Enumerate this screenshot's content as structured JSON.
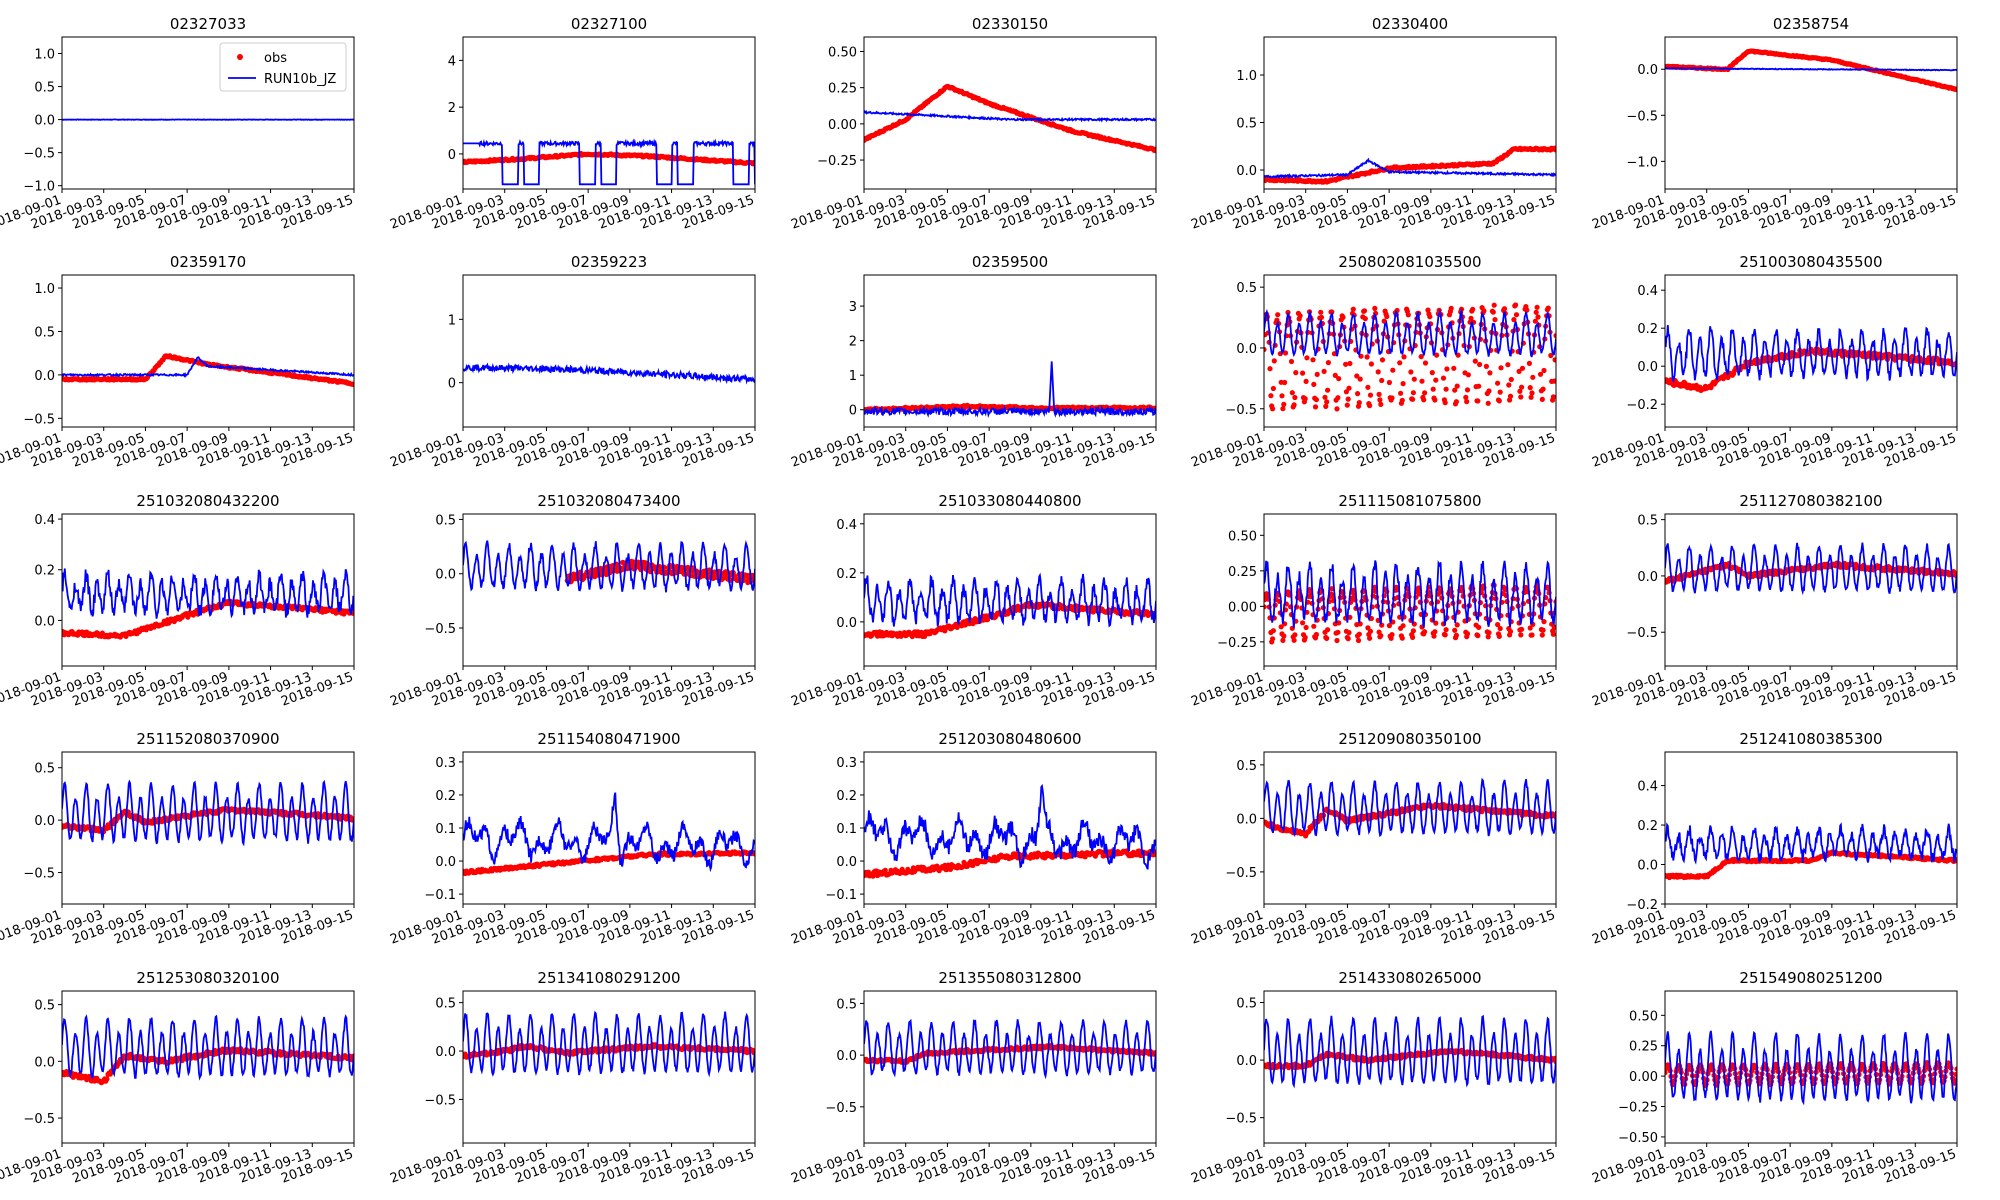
{
  "figure": {
    "colors": {
      "obs": "#ff0000",
      "model": "#0000ff"
    },
    "legend": {
      "obs_label": "obs",
      "model_label": "RUN10b_JZ",
      "placement": "upper-right of first panel"
    },
    "date_ticks": [
      "2018-09-01",
      "2018-09-03",
      "2018-09-05",
      "2018-09-07",
      "2018-09-09",
      "2018-09-11",
      "2018-09-13",
      "2018-09-15"
    ],
    "x_range": [
      "2018-09-01",
      "2018-09-15"
    ]
  },
  "chart_data": [
    {
      "type": "line",
      "title": "02327033",
      "yticks": [
        "−1.0",
        "−0.5",
        "0.0",
        "0.5",
        "1.0"
      ],
      "ylim": [
        -1.05,
        1.25
      ],
      "obs": {
        "present": false
      },
      "model": {
        "base": 0.0,
        "amp": 0.0,
        "noise": 0.003,
        "kind": "flat"
      }
    },
    {
      "type": "line",
      "title": "02327100",
      "yticks": [
        "0",
        "2",
        "4"
      ],
      "ylim": [
        -1.5,
        5.0
      ],
      "obs": {
        "present": true,
        "points": [
          [
            "2018-09-01",
            -0.35
          ],
          [
            "2018-09-04",
            -0.2
          ],
          [
            "2018-09-07",
            0.0
          ],
          [
            "2018-09-10",
            -0.1
          ],
          [
            "2018-09-15",
            -0.4
          ]
        ],
        "noise": 0.04
      },
      "model": {
        "kind": "switch",
        "high": 0.45,
        "low": -1.3
      }
    },
    {
      "type": "line",
      "title": "02330150",
      "yticks": [
        "−0.25",
        "0.00",
        "0.25",
        "0.50"
      ],
      "ylim": [
        -0.45,
        0.6
      ],
      "obs": {
        "present": true,
        "points": [
          [
            "2018-09-01",
            -0.11
          ],
          [
            "2018-09-03",
            0.03
          ],
          [
            "2018-09-05",
            0.26
          ],
          [
            "2018-09-07",
            0.14
          ],
          [
            "2018-09-11",
            -0.05
          ],
          [
            "2018-09-15",
            -0.18
          ]
        ],
        "noise": 0.006
      },
      "model": {
        "kind": "trend",
        "points": [
          [
            "2018-09-01",
            0.08
          ],
          [
            "2018-09-04",
            0.06
          ],
          [
            "2018-09-08",
            0.03
          ],
          [
            "2018-09-15",
            0.03
          ]
        ],
        "noise": 0.006
      }
    },
    {
      "type": "line",
      "title": "02330400",
      "yticks": [
        "0.0",
        "0.5",
        "1.0"
      ],
      "ylim": [
        -0.2,
        1.4
      ],
      "obs": {
        "present": true,
        "points": [
          [
            "2018-09-01",
            -0.1
          ],
          [
            "2018-09-04",
            -0.12
          ],
          [
            "2018-09-07",
            0.02
          ],
          [
            "2018-09-12",
            0.07
          ],
          [
            "2018-09-13",
            0.22
          ],
          [
            "2018-09-15",
            0.22
          ]
        ],
        "noise": 0.01
      },
      "model": {
        "kind": "trend",
        "points": [
          [
            "2018-09-01",
            -0.07
          ],
          [
            "2018-09-05",
            -0.05
          ],
          [
            "2018-09-06",
            0.1
          ],
          [
            "2018-09-07",
            -0.02
          ],
          [
            "2018-09-15",
            -0.05
          ]
        ],
        "noise": 0.01
      }
    },
    {
      "type": "line",
      "title": "02358754",
      "yticks": [
        "−1.0",
        "−0.5",
        "0.0"
      ],
      "ylim": [
        -1.3,
        0.35
      ],
      "obs": {
        "present": true,
        "points": [
          [
            "2018-09-01",
            0.03
          ],
          [
            "2018-09-04",
            0.0
          ],
          [
            "2018-09-05",
            0.2
          ],
          [
            "2018-09-09",
            0.1
          ],
          [
            "2018-09-15",
            -0.22
          ]
        ],
        "noise": 0.006
      },
      "model": {
        "kind": "trend",
        "points": [
          [
            "2018-09-01",
            0.01
          ],
          [
            "2018-09-15",
            -0.01
          ]
        ],
        "noise": 0.004
      }
    },
    {
      "type": "line",
      "title": "02359170",
      "yticks": [
        "−0.5",
        "0.0",
        "0.5",
        "1.0"
      ],
      "ylim": [
        -0.6,
        1.15
      ],
      "obs": {
        "present": true,
        "points": [
          [
            "2018-09-01",
            -0.05
          ],
          [
            "2018-09-05",
            -0.05
          ],
          [
            "2018-09-06",
            0.22
          ],
          [
            "2018-09-08",
            0.12
          ],
          [
            "2018-09-15",
            -0.1
          ]
        ],
        "noise": 0.01
      },
      "model": {
        "kind": "trend",
        "points": [
          [
            "2018-09-01",
            0.0
          ],
          [
            "2018-09-07",
            0.0
          ],
          [
            "2018-09-07.5",
            0.2
          ],
          [
            "2018-09-08",
            0.1
          ],
          [
            "2018-09-15",
            0.0
          ]
        ],
        "noise": 0.01
      }
    },
    {
      "type": "line",
      "title": "02359223",
      "yticks": [
        "0",
        "1"
      ],
      "ylim": [
        -0.7,
        1.7
      ],
      "obs": {
        "present": false
      },
      "model": {
        "kind": "trend",
        "points": [
          [
            "2018-09-01",
            0.24
          ],
          [
            "2018-09-05",
            0.22
          ],
          [
            "2018-09-08",
            0.18
          ],
          [
            "2018-09-15",
            0.05
          ]
        ],
        "noise": 0.05
      }
    },
    {
      "type": "line",
      "title": "02359500",
      "yticks": [
        "0",
        "1",
        "2",
        "3"
      ],
      "ylim": [
        -0.5,
        3.9
      ],
      "obs": {
        "present": true,
        "points": [
          [
            "2018-09-01",
            0.0
          ],
          [
            "2018-09-06",
            0.1
          ],
          [
            "2018-09-09",
            0.05
          ],
          [
            "2018-09-15",
            0.05
          ]
        ],
        "noise": 0.03
      },
      "model": {
        "kind": "spike",
        "base": -0.05,
        "noise": 0.1,
        "spike_day": 9.0,
        "spike": 1.45
      }
    },
    {
      "type": "line",
      "title": "250802081035500",
      "yticks": [
        "−0.5",
        "0.0",
        "0.5"
      ],
      "ylim": [
        -0.65,
        0.6
      ],
      "obs": {
        "present": true,
        "tidal": true,
        "base": 0.0,
        "amp": 0.38,
        "trend": 0.08
      },
      "model": {
        "kind": "tidal",
        "base": 0.1,
        "amp": 0.17,
        "noise": 0.02
      }
    },
    {
      "type": "line",
      "title": "251003080435500",
      "yticks": [
        "−0.2",
        "0.0",
        "0.2",
        "0.4"
      ],
      "ylim": [
        -0.32,
        0.48
      ],
      "obs": {
        "present": true,
        "points": [
          [
            "2018-09-01",
            -0.08
          ],
          [
            "2018-09-03",
            -0.12
          ],
          [
            "2018-09-05",
            0.02
          ],
          [
            "2018-09-08",
            0.08
          ],
          [
            "2018-09-15",
            0.02
          ]
        ],
        "noise": 0.015
      },
      "model": {
        "kind": "tidal",
        "base": 0.06,
        "amp": 0.12,
        "noise": 0.03
      }
    },
    {
      "type": "line",
      "title": "251032080432200",
      "yticks": [
        "0.0",
        "0.2",
        "0.4"
      ],
      "ylim": [
        -0.18,
        0.42
      ],
      "obs": {
        "present": true,
        "points": [
          [
            "2018-09-01",
            -0.05
          ],
          [
            "2018-09-04",
            -0.06
          ],
          [
            "2018-09-07",
            0.02
          ],
          [
            "2018-09-09",
            0.07
          ],
          [
            "2018-09-15",
            0.03
          ]
        ],
        "noise": 0.008
      },
      "model": {
        "kind": "tidal",
        "base": 0.1,
        "amp": 0.07,
        "noise": 0.03
      }
    },
    {
      "type": "line",
      "title": "251032080473400",
      "yticks": [
        "−0.5",
        "0.0",
        "0.5"
      ],
      "ylim": [
        -0.85,
        0.55
      ],
      "obs": {
        "present": true,
        "start": "2018-09-06",
        "points": [
          [
            "2018-09-06",
            -0.05
          ],
          [
            "2018-09-09",
            0.08
          ],
          [
            "2018-09-15",
            -0.05
          ]
        ],
        "noise": 0.04
      },
      "model": {
        "kind": "tidal",
        "base": 0.05,
        "amp": 0.2,
        "noise": 0.04
      }
    },
    {
      "type": "line",
      "title": "251033080440800",
      "yticks": [
        "0.0",
        "0.2",
        "0.4"
      ],
      "ylim": [
        -0.18,
        0.44
      ],
      "obs": {
        "present": true,
        "points": [
          [
            "2018-09-01",
            -0.05
          ],
          [
            "2018-09-04",
            -0.05
          ],
          [
            "2018-09-07",
            0.02
          ],
          [
            "2018-09-09",
            0.07
          ],
          [
            "2018-09-15",
            0.03
          ]
        ],
        "noise": 0.01
      },
      "model": {
        "kind": "tidal",
        "base": 0.08,
        "amp": 0.08,
        "noise": 0.03
      }
    },
    {
      "type": "line",
      "title": "251115081075800",
      "yticks": [
        "−0.25",
        "0.00",
        "0.25",
        "0.50"
      ],
      "ylim": [
        -0.42,
        0.65
      ],
      "obs": {
        "present": true,
        "tidal": true,
        "base": -0.02,
        "amp": 0.17,
        "trend": 0.05
      },
      "model": {
        "kind": "tidal",
        "base": 0.08,
        "amp": 0.2,
        "noise": 0.05
      }
    },
    {
      "type": "line",
      "title": "251127080382100",
      "yticks": [
        "−0.5",
        "0.0",
        "0.5"
      ],
      "ylim": [
        -0.8,
        0.55
      ],
      "obs": {
        "present": true,
        "points": [
          [
            "2018-09-01",
            -0.05
          ],
          [
            "2018-09-04",
            0.1
          ],
          [
            "2018-09-05",
            0.0
          ],
          [
            "2018-09-09",
            0.1
          ],
          [
            "2018-09-15",
            0.02
          ]
        ],
        "noise": 0.02
      },
      "model": {
        "kind": "tidal",
        "base": 0.05,
        "amp": 0.2,
        "noise": 0.03
      }
    },
    {
      "type": "line",
      "title": "251152080370900",
      "yticks": [
        "−0.5",
        "0.0",
        "0.5"
      ],
      "ylim": [
        -0.8,
        0.65
      ],
      "obs": {
        "present": true,
        "points": [
          [
            "2018-09-01",
            -0.05
          ],
          [
            "2018-09-03",
            -0.1
          ],
          [
            "2018-09-04",
            0.08
          ],
          [
            "2018-09-05",
            -0.02
          ],
          [
            "2018-09-09",
            0.1
          ],
          [
            "2018-09-15",
            0.02
          ]
        ],
        "noise": 0.02
      },
      "model": {
        "kind": "tidal",
        "base": 0.05,
        "amp": 0.27,
        "noise": 0.03
      }
    },
    {
      "type": "line",
      "title": "251154080471900",
      "yticks": [
        "−0.1",
        "0.0",
        "0.1",
        "0.2",
        "0.3"
      ],
      "ylim": [
        -0.13,
        0.33
      ],
      "obs": {
        "present": true,
        "points": [
          [
            "2018-09-01",
            -0.035
          ],
          [
            "2018-09-05",
            -0.01
          ],
          [
            "2018-09-10",
            0.02
          ],
          [
            "2018-09-15",
            0.025
          ]
        ],
        "noise": 0.004
      },
      "model": {
        "kind": "bumpy",
        "base": 0.07,
        "noise": 0.02,
        "spike_day": 7.3,
        "spike": 0.22
      }
    },
    {
      "type": "line",
      "title": "251203080480600",
      "yticks": [
        "−0.1",
        "0.0",
        "0.1",
        "0.2",
        "0.3"
      ],
      "ylim": [
        -0.13,
        0.33
      ],
      "obs": {
        "present": true,
        "points": [
          [
            "2018-09-01",
            -0.04
          ],
          [
            "2018-09-05",
            -0.02
          ],
          [
            "2018-09-08",
            0.015
          ],
          [
            "2018-09-15",
            0.025
          ]
        ],
        "noise": 0.008
      },
      "model": {
        "kind": "bumpy",
        "base": 0.08,
        "noise": 0.025,
        "spike_day": 8.5,
        "spike": 0.23
      }
    },
    {
      "type": "line",
      "title": "251209080350100",
      "yticks": [
        "−0.5",
        "0.0",
        "0.5"
      ],
      "ylim": [
        -0.8,
        0.62
      ],
      "obs": {
        "present": true,
        "points": [
          [
            "2018-09-01",
            -0.05
          ],
          [
            "2018-09-03",
            -0.15
          ],
          [
            "2018-09-04",
            0.08
          ],
          [
            "2018-09-05",
            -0.02
          ],
          [
            "2018-09-09",
            0.12
          ],
          [
            "2018-09-15",
            0.02
          ]
        ],
        "noise": 0.02
      },
      "model": {
        "kind": "tidal",
        "base": 0.08,
        "amp": 0.24,
        "noise": 0.03
      }
    },
    {
      "type": "line",
      "title": "251241080385300",
      "yticks": [
        "−0.2",
        "0.0",
        "0.2",
        "0.4"
      ],
      "ylim": [
        -0.2,
        0.57
      ],
      "obs": {
        "present": true,
        "points": [
          [
            "2018-09-01",
            -0.06
          ],
          [
            "2018-09-03",
            -0.06
          ],
          [
            "2018-09-04",
            0.02
          ],
          [
            "2018-09-08",
            0.02
          ],
          [
            "2018-09-09",
            0.06
          ],
          [
            "2018-09-15",
            0.02
          ]
        ],
        "noise": 0.006
      },
      "model": {
        "kind": "tidal",
        "base": 0.1,
        "amp": 0.07,
        "noise": 0.03
      }
    },
    {
      "type": "line",
      "title": "251253080320100",
      "yticks": [
        "−0.5",
        "0.0",
        "0.5"
      ],
      "ylim": [
        -0.72,
        0.62
      ],
      "obs": {
        "present": true,
        "points": [
          [
            "2018-09-01",
            -0.1
          ],
          [
            "2018-09-03",
            -0.18
          ],
          [
            "2018-09-04",
            0.05
          ],
          [
            "2018-09-06",
            0.0
          ],
          [
            "2018-09-09",
            0.1
          ],
          [
            "2018-09-15",
            0.03
          ]
        ],
        "noise": 0.02
      },
      "model": {
        "kind": "tidal",
        "base": 0.1,
        "amp": 0.25,
        "noise": 0.03
      }
    },
    {
      "type": "line",
      "title": "251341080291200",
      "yticks": [
        "−0.5",
        "0.0",
        "0.5"
      ],
      "ylim": [
        -0.95,
        0.62
      ],
      "obs": {
        "present": true,
        "points": [
          [
            "2018-09-01",
            -0.05
          ],
          [
            "2018-09-03",
            0.0
          ],
          [
            "2018-09-04",
            0.05
          ],
          [
            "2018-09-06",
            -0.02
          ],
          [
            "2018-09-10",
            0.05
          ],
          [
            "2018-09-15",
            0.0
          ]
        ],
        "noise": 0.02
      },
      "model": {
        "kind": "tidal",
        "base": 0.05,
        "amp": 0.3,
        "noise": 0.03
      }
    },
    {
      "type": "line",
      "title": "251355080312800",
      "yticks": [
        "−0.5",
        "0.0",
        "0.5"
      ],
      "ylim": [
        -0.85,
        0.62
      ],
      "obs": {
        "present": true,
        "points": [
          [
            "2018-09-01",
            -0.05
          ],
          [
            "2018-09-03",
            -0.06
          ],
          [
            "2018-09-04",
            0.02
          ],
          [
            "2018-09-10",
            0.08
          ],
          [
            "2018-09-15",
            0.02
          ]
        ],
        "noise": 0.015
      },
      "model": {
        "kind": "tidal",
        "base": 0.05,
        "amp": 0.25,
        "noise": 0.03
      }
    },
    {
      "type": "line",
      "title": "251433080265000",
      "yticks": [
        "−0.5",
        "0.0",
        "0.5"
      ],
      "ylim": [
        -0.72,
        0.6
      ],
      "obs": {
        "present": true,
        "points": [
          [
            "2018-09-01",
            -0.05
          ],
          [
            "2018-09-03",
            -0.05
          ],
          [
            "2018-09-04",
            0.05
          ],
          [
            "2018-09-06",
            0.0
          ],
          [
            "2018-09-10",
            0.08
          ],
          [
            "2018-09-15",
            0.0
          ]
        ],
        "noise": 0.015
      },
      "model": {
        "kind": "tidal",
        "base": 0.05,
        "amp": 0.28,
        "noise": 0.03
      }
    },
    {
      "type": "line",
      "title": "251549080251200",
      "yticks": [
        "−0.50",
        "−0.25",
        "0.00",
        "0.25",
        "0.50"
      ],
      "ylim": [
        -0.55,
        0.7
      ],
      "obs": {
        "present": true,
        "tidal": true,
        "base": 0.03,
        "amp": 0.08,
        "trend": 0.02
      },
      "model": {
        "kind": "tidal",
        "base": 0.05,
        "amp": 0.27,
        "noise": 0.03
      }
    }
  ]
}
